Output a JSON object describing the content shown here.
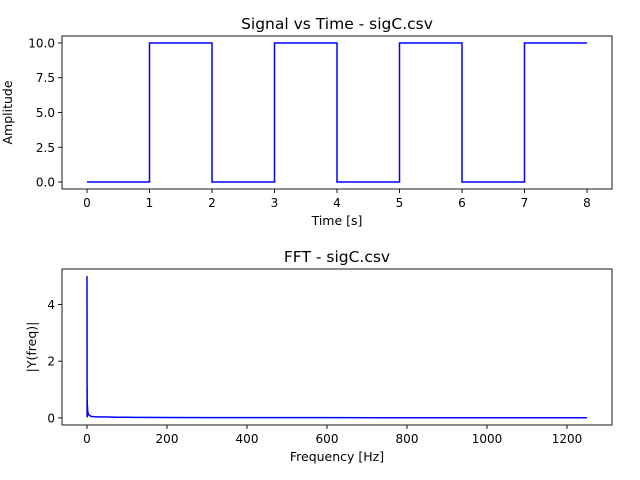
{
  "chart_data": [
    {
      "type": "line",
      "title": "Signal vs Time - sigC.csv",
      "xlabel": "Time [s]",
      "ylabel": "Amplitude",
      "xlim": [
        -0.4,
        8.4
      ],
      "ylim": [
        -0.5,
        10.5
      ],
      "xticks": [
        0,
        1,
        2,
        3,
        4,
        5,
        6,
        7,
        8
      ],
      "xtick_labels": [
        "0",
        "1",
        "2",
        "3",
        "4",
        "5",
        "6",
        "7",
        "8"
      ],
      "yticks": [
        0,
        2.5,
        5,
        7.5,
        10
      ],
      "ytick_labels": [
        "0.0",
        "2.5",
        "5.0",
        "7.5",
        "10.0"
      ],
      "grid": false,
      "line_color": "#0000ff",
      "series": [
        {
          "x": [
            0,
            1,
            1,
            2,
            2,
            3,
            3,
            4,
            4,
            5,
            5,
            6,
            6,
            7,
            7,
            8
          ],
          "y": [
            0,
            0,
            10,
            10,
            0,
            0,
            10,
            10,
            0,
            0,
            10,
            10,
            0,
            0,
            10,
            10
          ]
        }
      ]
    },
    {
      "type": "line",
      "title": "FFT - sigC.csv",
      "xlabel": "Frequency [Hz]",
      "ylabel": "|Y(freq)|",
      "xlim": [
        -62.5,
        1312.5
      ],
      "ylim": [
        -0.25,
        5.25
      ],
      "xticks": [
        0,
        200,
        400,
        600,
        800,
        1000,
        1200
      ],
      "xtick_labels": [
        "0",
        "200",
        "400",
        "600",
        "800",
        "1000",
        "1200"
      ],
      "yticks": [
        0,
        2,
        4
      ],
      "ytick_labels": [
        "0",
        "2",
        "4"
      ],
      "grid": false,
      "line_color": "#0000ff",
      "series": [
        {
          "x": [
            0,
            0.125,
            0.25,
            0.375,
            0.5,
            0.625,
            0.75,
            1,
            1.5,
            2,
            3,
            5,
            8,
            12,
            20,
            30,
            50,
            80,
            120,
            200,
            300,
            400,
            600,
            800,
            1000,
            1250
          ],
          "y": [
            5.0,
            3.2,
            0.05,
            1.05,
            0.02,
            0.63,
            0.02,
            0.45,
            0.3,
            0.22,
            0.15,
            0.1,
            0.07,
            0.05,
            0.04,
            0.035,
            0.03,
            0.025,
            0.02,
            0.015,
            0.012,
            0.01,
            0.008,
            0.006,
            0.005,
            0.004
          ]
        }
      ]
    }
  ]
}
